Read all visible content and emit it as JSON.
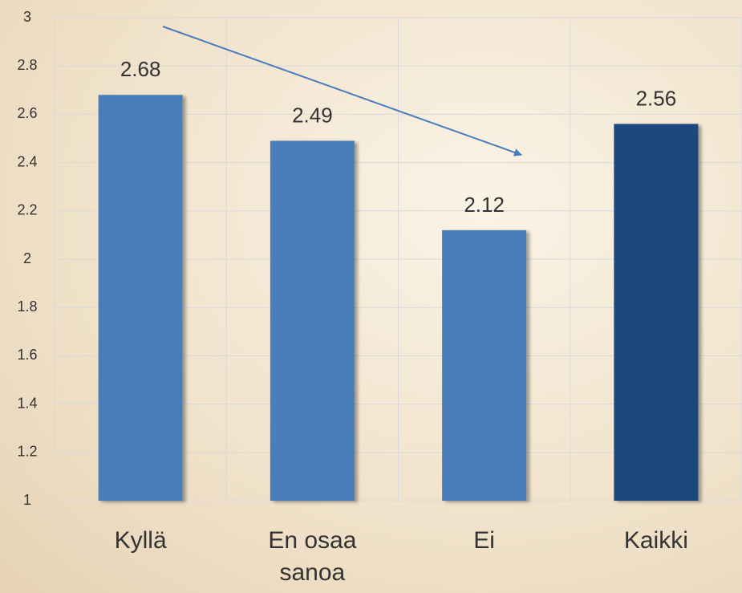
{
  "chart_data": {
    "type": "bar",
    "categories": [
      "Kyllä",
      "En osaa sanoa",
      "Ei",
      "Kaikki"
    ],
    "values": [
      2.68,
      2.49,
      2.12,
      2.56
    ],
    "colors": [
      "#4a7ebb",
      "#4a7ebb",
      "#4a7ebb",
      "#1f497d"
    ],
    "ylim": [
      1,
      3
    ],
    "yticks": [
      1,
      1.2,
      1.4,
      1.6,
      1.8,
      2,
      2.2,
      2.4,
      2.6,
      2.8,
      3
    ],
    "grid": true
  }
}
